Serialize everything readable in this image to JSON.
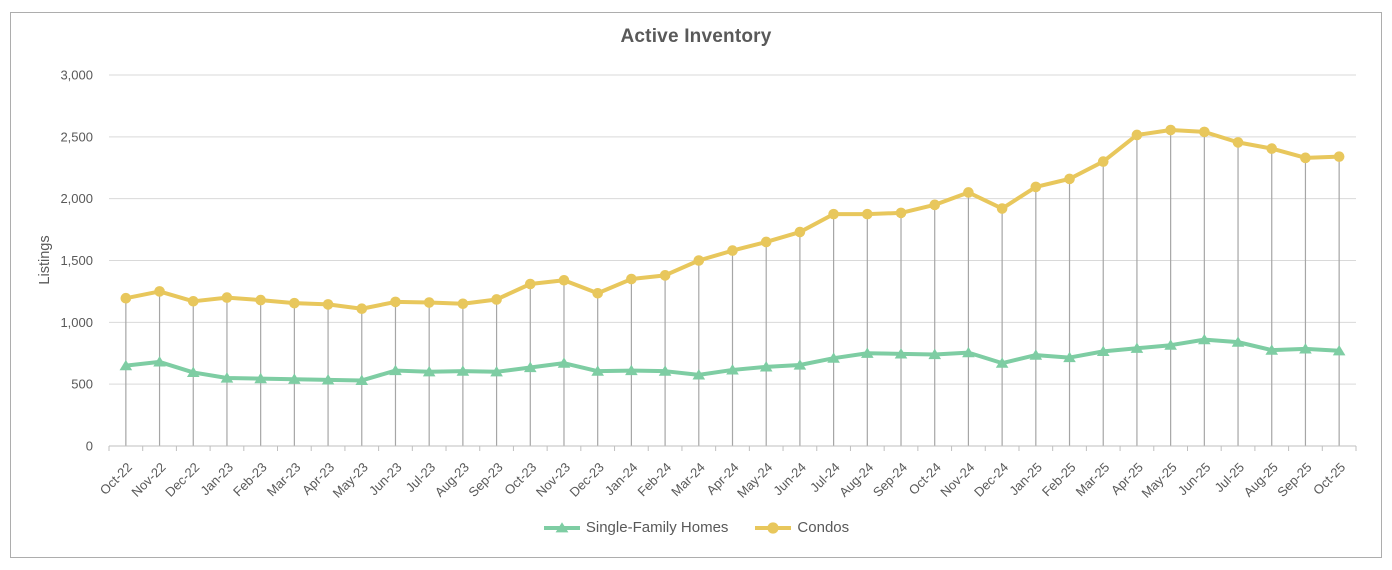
{
  "chart_data": {
    "type": "line",
    "title": "Active Inventory",
    "xlabel": "",
    "ylabel": "Listings",
    "ylim": [
      0,
      3000
    ],
    "y_ticks": [
      0,
      500,
      1000,
      1500,
      2000,
      2500,
      3000
    ],
    "y_tick_labels": [
      "0",
      "500",
      "1,000",
      "1,500",
      "2,000",
      "2,500",
      "3,000"
    ],
    "grid": "horizontal",
    "legend_position": "bottom-center",
    "x_label_rotation_deg": 45,
    "colors": {
      "gridline": "#d9d9d9",
      "dropline": "#a6a6a6",
      "axis": "#bfbfbf",
      "text": "#595959",
      "frame_border": "#adadad"
    },
    "categories": [
      "Oct-22",
      "Nov-22",
      "Dec-22",
      "Jan-23",
      "Feb-23",
      "Mar-23",
      "Apr-23",
      "May-23",
      "Jun-23",
      "Jul-23",
      "Aug-23",
      "Sep-23",
      "Oct-23",
      "Nov-23",
      "Dec-23",
      "Jan-24",
      "Feb-24",
      "Mar-24",
      "Apr-24",
      "May-24",
      "Jun-24",
      "Jul-24",
      "Aug-24",
      "Sep-24",
      "Oct-24",
      "Nov-24",
      "Dec-24",
      "Jan-25",
      "Feb-25",
      "Mar-25",
      "Apr-25",
      "May-25",
      "Jun-25",
      "Jul-25",
      "Aug-25",
      "Sep-25",
      "Oct-25"
    ],
    "series": [
      {
        "name": "Single-Family Homes",
        "color": "#7ecda3",
        "marker": "triangle",
        "droplines": false,
        "values": [
          650,
          680,
          595,
          550,
          545,
          540,
          535,
          530,
          610,
          600,
          605,
          600,
          635,
          670,
          605,
          610,
          605,
          575,
          615,
          640,
          655,
          710,
          750,
          745,
          740,
          755,
          670,
          735,
          715,
          765,
          790,
          815,
          860,
          840,
          775,
          785,
          770
        ]
      },
      {
        "name": "Condos",
        "color": "#e8c75c",
        "marker": "circle",
        "droplines": true,
        "values": [
          1195,
          1250,
          1170,
          1200,
          1180,
          1155,
          1145,
          1110,
          1165,
          1160,
          1150,
          1185,
          1310,
          1340,
          1235,
          1350,
          1380,
          1500,
          1580,
          1650,
          1730,
          1875,
          1875,
          1885,
          1950,
          2050,
          1920,
          2095,
          2160,
          2300,
          2515,
          2555,
          2540,
          2455,
          2405,
          2330,
          2340
        ]
      }
    ]
  }
}
